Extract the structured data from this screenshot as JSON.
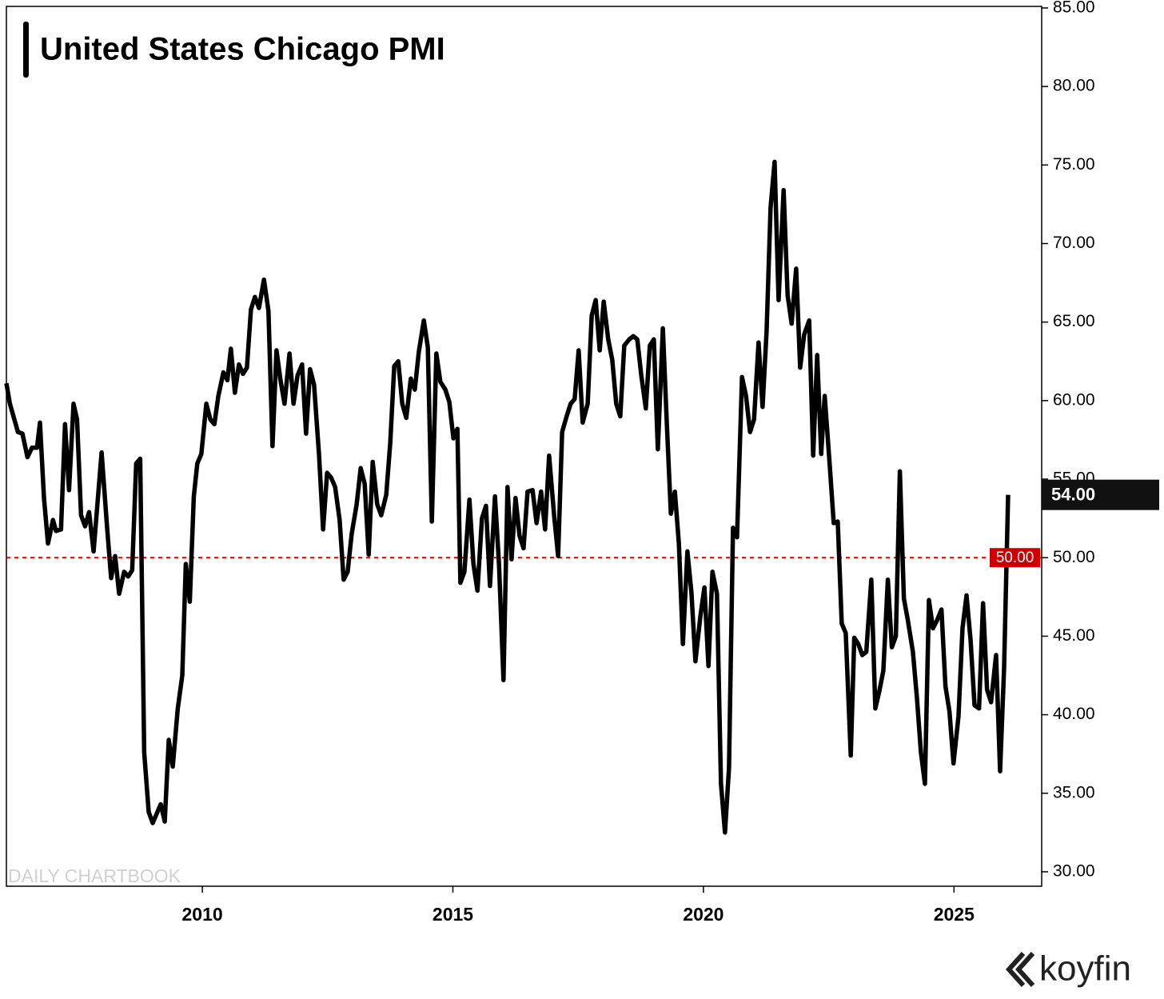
{
  "chart_data": {
    "type": "line",
    "title": "United States Chicago PMI",
    "watermark": "DAILY CHARTBOOK",
    "brand": "koyfin",
    "color": "#000000",
    "xlim": [
      2006.09,
      2026.75
    ],
    "ylim": [
      29.08,
      85.1
    ],
    "xticks": [
      2010,
      2015,
      2020,
      2025
    ],
    "yticks": [
      {
        "value": 30,
        "label": "30.00"
      },
      {
        "value": 35,
        "label": "35.00"
      },
      {
        "value": 40,
        "label": "40.00"
      },
      {
        "value": 45,
        "label": "45.00"
      },
      {
        "value": 50,
        "label": "50.00"
      },
      {
        "value": 55,
        "label": "55.00"
      },
      {
        "value": 60,
        "label": "60.00"
      },
      {
        "value": 65,
        "label": "65.00"
      },
      {
        "value": 70,
        "label": "70.00"
      },
      {
        "value": 75,
        "label": "75.00"
      },
      {
        "value": 80,
        "label": "80.00"
      },
      {
        "value": 85,
        "label": "85.00"
      }
    ],
    "reference_line": {
      "value": 50,
      "label": "50.00",
      "color": "#cc0000"
    },
    "last_value": {
      "value": 54,
      "label": "54.00"
    },
    "x": [
      2006.09,
      2006.16,
      2006.32,
      2006.41,
      2006.51,
      2006.6,
      2006.7,
      2006.76,
      2006.84,
      2006.92,
      2007.02,
      2007.08,
      2007.18,
      2007.26,
      2007.34,
      2007.43,
      2007.5,
      2007.58,
      2007.66,
      2007.74,
      2007.83,
      2007.99,
      2008.1,
      2008.18,
      2008.26,
      2008.34,
      2008.44,
      2008.52,
      2008.6,
      2008.68,
      2008.76,
      2008.84,
      2008.93,
      2009.01,
      2009.09,
      2009.17,
      2009.25,
      2009.33,
      2009.41,
      2009.51,
      2009.6,
      2009.67,
      2009.75,
      2009.83,
      2009.9,
      2009.98,
      2010.08,
      2010.16,
      2010.24,
      2010.32,
      2010.42,
      2010.5,
      2010.57,
      2010.65,
      2010.73,
      2010.81,
      2010.89,
      2010.97,
      2011.05,
      2011.13,
      2011.23,
      2011.32,
      2011.4,
      2011.48,
      2011.56,
      2011.64,
      2011.74,
      2011.82,
      2011.9,
      2011.99,
      2012.07,
      2012.15,
      2012.23,
      2012.33,
      2012.41,
      2012.49,
      2012.57,
      2012.65,
      2012.74,
      2012.82,
      2012.9,
      2012.98,
      2013.08,
      2013.16,
      2013.24,
      2013.32,
      2013.4,
      2013.49,
      2013.57,
      2013.67,
      2013.75,
      2013.83,
      2013.91,
      2013.99,
      2014.07,
      2014.16,
      2014.24,
      2014.32,
      2014.42,
      2014.5,
      2014.58,
      2014.67,
      2014.75,
      2014.85,
      2014.93,
      2015.01,
      2015.09,
      2015.15,
      2015.23,
      2015.33,
      2015.41,
      2015.49,
      2015.58,
      2015.66,
      2015.74,
      2015.84,
      2015.92,
      2016.01,
      2016.09,
      2016.17,
      2016.25,
      2016.33,
      2016.41,
      2016.49,
      2016.59,
      2016.67,
      2016.76,
      2016.84,
      2016.92,
      2017.02,
      2017.1,
      2017.18,
      2017.27,
      2017.35,
      2017.43,
      2017.51,
      2017.59,
      2017.69,
      2017.77,
      2017.85,
      2017.93,
      2018.01,
      2018.1,
      2018.18,
      2018.26,
      2018.34,
      2018.42,
      2018.52,
      2018.6,
      2018.68,
      2018.76,
      2018.85,
      2018.93,
      2019.01,
      2019.09,
      2019.19,
      2019.27,
      2019.35,
      2019.43,
      2019.51,
      2019.59,
      2019.68,
      2019.76,
      2019.84,
      2019.94,
      2020.02,
      2020.1,
      2020.18,
      2020.27,
      2020.35,
      2020.43,
      2020.51,
      2020.59,
      2020.67,
      2020.77,
      2020.85,
      2020.93,
      2021.01,
      2021.1,
      2021.18,
      2021.26,
      2021.34,
      2021.42,
      2021.5,
      2021.6,
      2021.68,
      2021.76,
      2021.85,
      2021.93,
      2022.01,
      2022.11,
      2022.19,
      2022.27,
      2022.35,
      2022.42,
      2022.52,
      2022.6,
      2022.68,
      2022.76,
      2022.84,
      2022.94,
      2023.01,
      2023.09,
      2023.17,
      2023.25,
      2023.35,
      2023.43,
      2023.51,
      2023.59,
      2023.68,
      2023.76,
      2023.84,
      2023.92,
      2024.0,
      2024.08,
      2024.18,
      2024.26,
      2024.34,
      2024.42,
      2024.5,
      2024.58,
      2024.66,
      2024.75,
      2024.83,
      2024.91,
      2024.99,
      2025.09,
      2025.17,
      2025.25,
      2025.33,
      2025.41,
      2025.5,
      2025.58,
      2025.66,
      2025.74,
      2025.84,
      2025.92,
      2026.0,
      2026.08
    ],
    "values": [
      61.1,
      59.8,
      58.0,
      57.9,
      56.4,
      57.0,
      57.0,
      58.6,
      53.8,
      50.9,
      52.4,
      51.7,
      51.8,
      58.5,
      54.3,
      59.8,
      58.8,
      52.7,
      52.0,
      52.9,
      50.4,
      56.7,
      51.9,
      48.7,
      50.1,
      47.7,
      49.1,
      48.8,
      49.2,
      56.0,
      56.3,
      37.6,
      33.8,
      33.1,
      33.7,
      34.3,
      33.2,
      38.4,
      36.7,
      40.4,
      42.5,
      49.6,
      47.2,
      53.9,
      56.0,
      56.6,
      59.8,
      58.8,
      58.5,
      60.3,
      61.8,
      61.3,
      63.3,
      60.5,
      62.3,
      61.7,
      62.1,
      65.8,
      66.6,
      65.9,
      67.7,
      65.7,
      57.1,
      63.2,
      61.3,
      59.8,
      63.0,
      59.8,
      61.6,
      62.3,
      57.9,
      62.0,
      61.0,
      56.5,
      51.8,
      55.4,
      55.1,
      54.5,
      52.4,
      48.6,
      49.1,
      51.5,
      53.4,
      55.7,
      54.7,
      50.2,
      56.1,
      53.4,
      52.7,
      54.0,
      57.3,
      62.2,
      62.5,
      59.8,
      58.9,
      61.4,
      60.7,
      63.1,
      65.1,
      63.4,
      52.3,
      63.0,
      61.2,
      60.7,
      59.9,
      57.6,
      58.2,
      48.4,
      49.1,
      53.7,
      49.6,
      47.9,
      52.5,
      53.3,
      48.2,
      53.9,
      49.6,
      42.2,
      54.5,
      49.9,
      53.8,
      51.4,
      50.6,
      54.2,
      54.3,
      52.2,
      54.2,
      51.8,
      56.5,
      52.7,
      50.1,
      58.0,
      59.0,
      59.8,
      60.1,
      63.2,
      58.6,
      59.8,
      65.4,
      66.4,
      63.2,
      66.3,
      63.9,
      62.6,
      59.8,
      59.0,
      63.5,
      63.9,
      64.1,
      63.9,
      61.6,
      59.5,
      63.5,
      63.9,
      56.9,
      64.6,
      58.5,
      52.8,
      54.2,
      50.9,
      44.5,
      50.4,
      47.8,
      43.4,
      46.3,
      48.1,
      43.1,
      49.1,
      47.7,
      35.6,
      32.5,
      36.6,
      51.9,
      51.3,
      61.5,
      60.3,
      58.0,
      58.8,
      63.7,
      59.6,
      64.4,
      72.3,
      75.2,
      66.4,
      73.4,
      66.7,
      64.9,
      68.4,
      62.1,
      64.2,
      65.1,
      56.5,
      62.9,
      56.6,
      60.3,
      55.9,
      52.2,
      52.3,
      45.8,
      45.2,
      37.4,
      44.9,
      44.5,
      43.8,
      44.0,
      48.6,
      40.4,
      41.5,
      42.8,
      48.6,
      44.3,
      45.0,
      55.5,
      47.4,
      46.0,
      44.0,
      41.1,
      37.6,
      35.6,
      47.3,
      45.5,
      46.0,
      46.7,
      41.8,
      40.2,
      36.9,
      39.9,
      45.5,
      47.6,
      44.8,
      40.6,
      40.4,
      47.1,
      41.6,
      40.8,
      43.8,
      36.4,
      43.0,
      54.0
    ]
  }
}
